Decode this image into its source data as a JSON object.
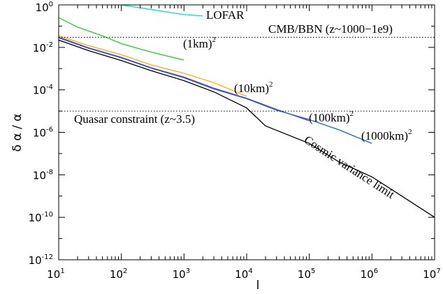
{
  "chart_data": {
    "type": "line",
    "xlabel": "l",
    "ylabel": "δ α  /  α",
    "xscale": "log",
    "yscale": "log",
    "xlim": [
      10,
      10000000
    ],
    "ylim": [
      1e-12,
      1
    ],
    "grid": false,
    "x_ticks": [
      {
        "base": "10",
        "exp": "1",
        "value": 10
      },
      {
        "base": "10",
        "exp": "2",
        "value": 100
      },
      {
        "base": "10",
        "exp": "3",
        "value": 1000
      },
      {
        "base": "10",
        "exp": "4",
        "value": 10000
      },
      {
        "base": "10",
        "exp": "5",
        "value": 100000
      },
      {
        "base": "10",
        "exp": "6",
        "value": 1000000
      },
      {
        "base": "10",
        "exp": "7",
        "value": 10000000
      }
    ],
    "y_ticks": [
      {
        "base": "10",
        "exp": "0",
        "value": 1
      },
      {
        "base": "10",
        "exp": "-2",
        "value": 0.01
      },
      {
        "base": "10",
        "exp": "-4",
        "value": 0.0001
      },
      {
        "base": "10",
        "exp": "-6",
        "value": 1e-06
      },
      {
        "base": "10",
        "exp": "-8",
        "value": 1e-08
      },
      {
        "base": "10",
        "exp": "-10",
        "value": 1e-10
      },
      {
        "base": "10",
        "exp": "-12",
        "value": 1e-12
      }
    ],
    "hlines": [
      {
        "y": 0.03,
        "style": "dotted"
      },
      {
        "y": 1e-05,
        "style": "dotted"
      }
    ],
    "series": [
      {
        "color": "#00e0c0",
        "points": [
          [
            100,
            1.0
          ],
          [
            300,
            0.6
          ],
          [
            1000,
            0.35
          ],
          [
            2000,
            0.3
          ]
        ]
      },
      {
        "color": "#22cc22",
        "points": [
          [
            10,
            0.25
          ],
          [
            20,
            0.09
          ],
          [
            50,
            0.035
          ],
          [
            100,
            0.015
          ],
          [
            300,
            0.006
          ],
          [
            1000,
            0.0025
          ]
        ]
      },
      {
        "color": "#ffaa00",
        "points": [
          [
            10,
            0.035
          ],
          [
            30,
            0.012
          ],
          [
            100,
            0.0045
          ],
          [
            300,
            0.0015
          ],
          [
            1000,
            0.0006
          ],
          [
            3000,
            0.00022
          ],
          [
            10000,
            5e-05
          ]
        ]
      },
      {
        "color": "#7030a0",
        "points": [
          [
            10,
            0.03
          ],
          [
            30,
            0.0095
          ],
          [
            100,
            0.0034
          ],
          [
            300,
            0.0011
          ],
          [
            1000,
            0.0004
          ],
          [
            3000,
            0.00012
          ],
          [
            10000,
            4e-05
          ],
          [
            30000,
            1.2e-05
          ],
          [
            100000,
            3.5e-06
          ]
        ]
      },
      {
        "color": "#2060e0",
        "points": [
          [
            10,
            0.028
          ],
          [
            30,
            0.009
          ],
          [
            100,
            0.0032
          ],
          [
            300,
            0.00105
          ],
          [
            1000,
            0.00037
          ],
          [
            3000,
            0.00011
          ],
          [
            10000,
            3.8e-05
          ],
          [
            30000,
            1.1e-05
          ],
          [
            100000,
            4e-06
          ],
          [
            300000,
            1.3e-06
          ],
          [
            1000000,
            3e-07
          ]
        ]
      },
      {
        "color": "#000000",
        "points": [
          [
            10,
            0.022
          ],
          [
            30,
            0.007
          ],
          [
            100,
            0.0024
          ],
          [
            300,
            0.0008
          ],
          [
            1000,
            0.00027
          ],
          [
            3000,
            8e-05
          ],
          [
            10000,
            1.4e-05
          ],
          [
            20000,
            2e-06
          ],
          [
            100000,
            3e-07
          ],
          [
            300000,
            4e-08
          ],
          [
            1000000,
            8e-09
          ],
          [
            3000000,
            1e-09
          ],
          [
            10000000,
            1e-10
          ]
        ]
      }
    ],
    "annotations": {
      "lofar": {
        "text": "LOFAR",
        "sup": ""
      },
      "cmb": {
        "text": "CMB/BBN (z~1000−1e9)",
        "sup": ""
      },
      "km1": {
        "text": "(1km)",
        "sup": "2"
      },
      "km10": {
        "text": "(10km)",
        "sup": "2"
      },
      "quasar": {
        "text": "Quasar constraint  (z~3.5)",
        "sup": ""
      },
      "km100": {
        "text": "(100km)",
        "sup": "2"
      },
      "km1000": {
        "text": "(1000km)",
        "sup": "2"
      },
      "cosmic": {
        "text": "Cosmic variance limit",
        "sup": ""
      }
    }
  }
}
